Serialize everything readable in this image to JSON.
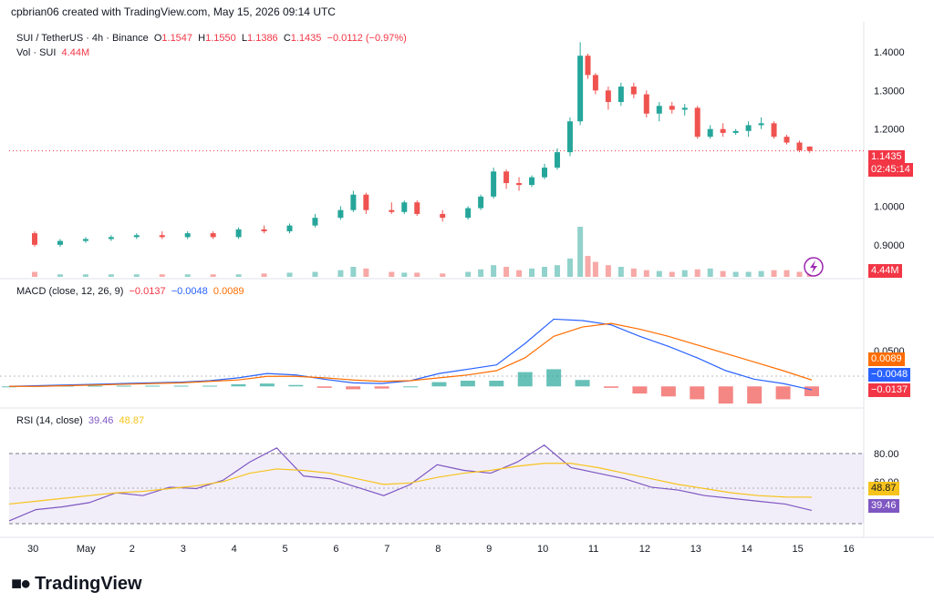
{
  "header": {
    "attribution": "cpbrian06 created with TradingView.com, May 15, 2026 09:14 UTC"
  },
  "legend": {
    "symbol": "SUI / TetherUS · 4h · Binance",
    "o_label": "O",
    "o_value": "1.1547",
    "h_label": "H",
    "h_value": "1.1550",
    "l_label": "L",
    "l_value": "1.1386",
    "c_label": "C",
    "c_value": "1.1435",
    "change": "−0.0112 (−0.97%)",
    "vol_label": "Vol · SUI",
    "vol_value": "4.44M"
  },
  "price_tags": {
    "last_price": "1.1435",
    "countdown": "02:45:14",
    "volume": "4.44M"
  },
  "macd": {
    "label": "MACD (close, 12, 26, 9)",
    "hist_value": "−0.0137",
    "macd_value": "−0.0048",
    "signal_value": "0.0089"
  },
  "rsi": {
    "label": "RSI (14, close)",
    "rsi_value": "39.46",
    "ma_value": "48.87"
  },
  "footer": {
    "logo_text": "TradingView"
  },
  "colors": {
    "up": "#26a69a",
    "down": "#ef5350",
    "macd_line": "#2962ff",
    "signal_line": "#ff6d00",
    "rsi_line": "#7e57c2",
    "rsi_ma": "#f7c31c"
  },
  "chart_data": [
    {
      "type": "candlestick",
      "title": "SUI / TetherUS · 4h · Binance",
      "x_tick_labels": [
        "30",
        "May",
        "2",
        "3",
        "4",
        "5",
        "6",
        "7",
        "8",
        "9",
        "10",
        "11",
        "12",
        "13",
        "14",
        "15",
        "16"
      ],
      "y_tick_labels": [
        "0.9000",
        "1.0000",
        "1.2000",
        "1.3000",
        "1.4000"
      ],
      "ylim": [
        0.85,
        1.44
      ],
      "candles": [
        {
          "day": 0.0,
          "o": 0.93,
          "h": 0.935,
          "l": 0.895,
          "c": 0.9
        },
        {
          "day": 0.5,
          "o": 0.9,
          "h": 0.915,
          "l": 0.895,
          "c": 0.91
        },
        {
          "day": 1.0,
          "o": 0.91,
          "h": 0.92,
          "l": 0.905,
          "c": 0.915
        },
        {
          "day": 1.5,
          "o": 0.915,
          "h": 0.925,
          "l": 0.91,
          "c": 0.92
        },
        {
          "day": 2.0,
          "o": 0.92,
          "h": 0.93,
          "l": 0.915,
          "c": 0.925
        },
        {
          "day": 2.5,
          "o": 0.925,
          "h": 0.935,
          "l": 0.915,
          "c": 0.92
        },
        {
          "day": 3.0,
          "o": 0.92,
          "h": 0.935,
          "l": 0.915,
          "c": 0.93
        },
        {
          "day": 3.5,
          "o": 0.93,
          "h": 0.935,
          "l": 0.915,
          "c": 0.92
        },
        {
          "day": 4.0,
          "o": 0.92,
          "h": 0.945,
          "l": 0.915,
          "c": 0.94
        },
        {
          "day": 4.5,
          "o": 0.94,
          "h": 0.95,
          "l": 0.93,
          "c": 0.935
        },
        {
          "day": 5.0,
          "o": 0.935,
          "h": 0.955,
          "l": 0.93,
          "c": 0.95
        },
        {
          "day": 5.5,
          "o": 0.95,
          "h": 0.98,
          "l": 0.945,
          "c": 0.97
        },
        {
          "day": 6.0,
          "o": 0.97,
          "h": 1.0,
          "l": 0.965,
          "c": 0.99
        },
        {
          "day": 6.25,
          "o": 0.99,
          "h": 1.04,
          "l": 0.985,
          "c": 1.03
        },
        {
          "day": 6.5,
          "o": 1.03,
          "h": 1.035,
          "l": 0.98,
          "c": 0.99
        },
        {
          "day": 7.0,
          "o": 0.99,
          "h": 1.01,
          "l": 0.98,
          "c": 0.985
        },
        {
          "day": 7.25,
          "o": 0.985,
          "h": 1.015,
          "l": 0.98,
          "c": 1.01
        },
        {
          "day": 7.5,
          "o": 1.01,
          "h": 1.015,
          "l": 0.975,
          "c": 0.98
        },
        {
          "day": 8.0,
          "o": 0.98,
          "h": 0.99,
          "l": 0.96,
          "c": 0.97
        },
        {
          "day": 8.5,
          "o": 0.97,
          "h": 1.0,
          "l": 0.965,
          "c": 0.995
        },
        {
          "day": 8.75,
          "o": 0.995,
          "h": 1.03,
          "l": 0.99,
          "c": 1.025
        },
        {
          "day": 9.0,
          "o": 1.025,
          "h": 1.1,
          "l": 1.02,
          "c": 1.09
        },
        {
          "day": 9.25,
          "o": 1.09,
          "h": 1.095,
          "l": 1.045,
          "c": 1.06
        },
        {
          "day": 9.5,
          "o": 1.06,
          "h": 1.075,
          "l": 1.04,
          "c": 1.055
        },
        {
          "day": 9.75,
          "o": 1.055,
          "h": 1.08,
          "l": 1.05,
          "c": 1.075
        },
        {
          "day": 10.0,
          "o": 1.075,
          "h": 1.11,
          "l": 1.07,
          "c": 1.1
        },
        {
          "day": 10.25,
          "o": 1.1,
          "h": 1.15,
          "l": 1.095,
          "c": 1.14
        },
        {
          "day": 10.5,
          "o": 1.14,
          "h": 1.23,
          "l": 1.13,
          "c": 1.22
        },
        {
          "day": 10.7,
          "o": 1.22,
          "h": 1.425,
          "l": 1.21,
          "c": 1.39
        },
        {
          "day": 10.85,
          "o": 1.39,
          "h": 1.395,
          "l": 1.33,
          "c": 1.34
        },
        {
          "day": 11.0,
          "o": 1.34,
          "h": 1.345,
          "l": 1.29,
          "c": 1.3
        },
        {
          "day": 11.25,
          "o": 1.3,
          "h": 1.31,
          "l": 1.25,
          "c": 1.27
        },
        {
          "day": 11.5,
          "o": 1.27,
          "h": 1.32,
          "l": 1.26,
          "c": 1.31
        },
        {
          "day": 11.75,
          "o": 1.31,
          "h": 1.32,
          "l": 1.28,
          "c": 1.29
        },
        {
          "day": 12.0,
          "o": 1.29,
          "h": 1.3,
          "l": 1.23,
          "c": 1.24
        },
        {
          "day": 12.25,
          "o": 1.24,
          "h": 1.27,
          "l": 1.22,
          "c": 1.26
        },
        {
          "day": 12.5,
          "o": 1.26,
          "h": 1.27,
          "l": 1.24,
          "c": 1.25
        },
        {
          "day": 12.75,
          "o": 1.25,
          "h": 1.265,
          "l": 1.235,
          "c": 1.255
        },
        {
          "day": 13.0,
          "o": 1.255,
          "h": 1.26,
          "l": 1.175,
          "c": 1.18
        },
        {
          "day": 13.25,
          "o": 1.18,
          "h": 1.21,
          "l": 1.175,
          "c": 1.2
        },
        {
          "day": 13.5,
          "o": 1.2,
          "h": 1.215,
          "l": 1.18,
          "c": 1.19
        },
        {
          "day": 13.75,
          "o": 1.19,
          "h": 1.2,
          "l": 1.185,
          "c": 1.195
        },
        {
          "day": 14.0,
          "o": 1.195,
          "h": 1.22,
          "l": 1.18,
          "c": 1.21
        },
        {
          "day": 14.25,
          "o": 1.21,
          "h": 1.23,
          "l": 1.2,
          "c": 1.215
        },
        {
          "day": 14.5,
          "o": 1.215,
          "h": 1.22,
          "l": 1.175,
          "c": 1.18
        },
        {
          "day": 14.75,
          "o": 1.18,
          "h": 1.185,
          "l": 1.16,
          "c": 1.165
        },
        {
          "day": 15.0,
          "o": 1.165,
          "h": 1.17,
          "l": 1.14,
          "c": 1.145
        },
        {
          "day": 15.2,
          "o": 1.1547,
          "h": 1.155,
          "l": 1.1386,
          "c": 1.1435
        }
      ]
    },
    {
      "type": "bar",
      "title": "Vol · SUI",
      "volumes_m": [
        6,
        3,
        3,
        3,
        3,
        3,
        3,
        3,
        3,
        4,
        5,
        6,
        8,
        12,
        10,
        6,
        5,
        5,
        4,
        6,
        9,
        14,
        12,
        8,
        10,
        12,
        14,
        22,
        60,
        25,
        18,
        14,
        12,
        10,
        8,
        7,
        6,
        8,
        9,
        10,
        7,
        6,
        6,
        7,
        8,
        8,
        6,
        4.44
      ]
    },
    {
      "type": "line",
      "title": "MACD (close, 12, 26, 9)",
      "y_tick_labels": [
        "0.0500"
      ],
      "ylim": [
        -0.02,
        0.12
      ],
      "series": [
        {
          "name": "MACD",
          "values": [
            0.0,
            0.001,
            0.002,
            0.003,
            0.004,
            0.005,
            0.006,
            0.008,
            0.012,
            0.018,
            0.016,
            0.01,
            0.005,
            0.004,
            0.008,
            0.018,
            0.024,
            0.03,
            0.06,
            0.094,
            0.092,
            0.086,
            0.07,
            0.056,
            0.04,
            0.022,
            0.01,
            0.004,
            -0.0048
          ]
        },
        {
          "name": "Signal",
          "values": [
            0.0,
            0.0,
            0.001,
            0.002,
            0.003,
            0.004,
            0.005,
            0.007,
            0.009,
            0.014,
            0.014,
            0.012,
            0.009,
            0.007,
            0.008,
            0.012,
            0.016,
            0.022,
            0.04,
            0.07,
            0.083,
            0.088,
            0.08,
            0.07,
            0.058,
            0.046,
            0.034,
            0.022,
            0.0089
          ]
        }
      ]
    },
    {
      "type": "line",
      "title": "RSI (14, close)",
      "y_tick_labels": [
        "60.00",
        "80.00"
      ],
      "ylim": [
        20,
        100
      ],
      "series": [
        {
          "name": "RSI",
          "values": [
            32,
            40,
            42,
            45,
            52,
            50,
            56,
            55,
            61,
            74,
            84,
            64,
            62,
            56,
            50,
            58,
            72,
            68,
            66,
            74,
            86,
            70,
            66,
            62,
            56,
            54,
            50,
            48,
            46,
            44,
            39.46
          ]
        },
        {
          "name": "RSI MA",
          "values": [
            44,
            46,
            48,
            50,
            52,
            53,
            55,
            57,
            60,
            66,
            69,
            68,
            66,
            62,
            58,
            59,
            63,
            66,
            68,
            71,
            73,
            73,
            70,
            66,
            62,
            58,
            55,
            52,
            50,
            49,
            48.87
          ]
        }
      ]
    }
  ]
}
